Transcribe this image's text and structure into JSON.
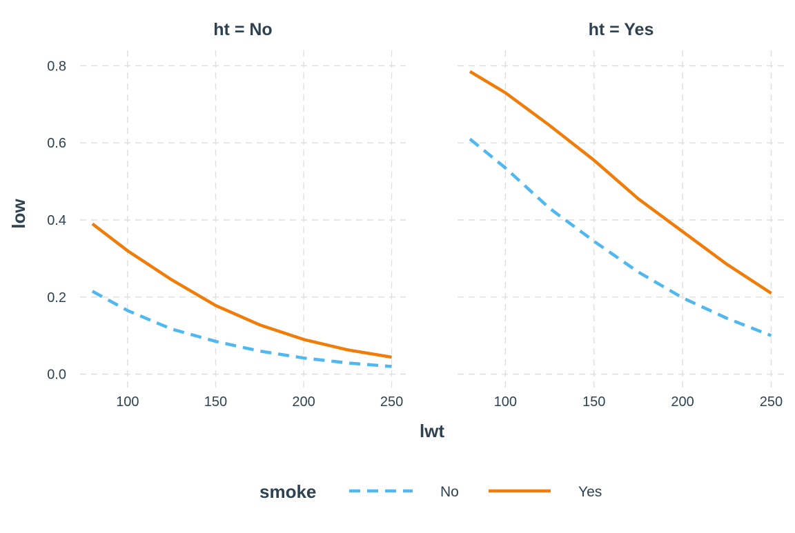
{
  "chart_data": {
    "type": "line",
    "xlabel": "lwt",
    "ylabel": "low",
    "xlim": [
      73,
      258
    ],
    "ylim": [
      -0.04,
      0.84
    ],
    "x_ticks": [
      100,
      150,
      200,
      250
    ],
    "y_ticks": [
      0.0,
      0.2,
      0.4,
      0.6,
      0.8
    ],
    "x_tick_labels": [
      "100",
      "150",
      "200",
      "250"
    ],
    "y_tick_labels": [
      "0.0",
      "0.2",
      "0.4",
      "0.6",
      "0.8"
    ],
    "grid": true,
    "legend": {
      "title": "smoke",
      "position": "bottom",
      "entries": [
        {
          "label": "No",
          "color": "#4FB8F0",
          "dash": "dashed"
        },
        {
          "label": "Yes",
          "color": "#F07C0A",
          "dash": "solid"
        }
      ]
    },
    "panels": [
      {
        "title": "ht = No",
        "x": [
          80,
          100,
          125,
          150,
          175,
          200,
          225,
          250
        ],
        "series": [
          {
            "name": "No",
            "values": [
              0.215,
              0.165,
              0.117,
              0.085,
              0.06,
              0.042,
              0.029,
              0.02
            ]
          },
          {
            "name": "Yes",
            "values": [
              0.39,
              0.32,
              0.245,
              0.178,
              0.128,
              0.09,
              0.063,
              0.044
            ]
          }
        ]
      },
      {
        "title": "ht = Yes",
        "x": [
          80,
          100,
          125,
          150,
          175,
          200,
          225,
          250
        ],
        "series": [
          {
            "name": "No",
            "values": [
              0.61,
              0.535,
              0.43,
              0.345,
              0.265,
              0.198,
              0.145,
              0.1
            ]
          },
          {
            "name": "Yes",
            "values": [
              0.785,
              0.73,
              0.645,
              0.555,
              0.455,
              0.37,
              0.285,
              0.21
            ]
          }
        ]
      }
    ]
  },
  "colors": {
    "text": "#2E4250",
    "grid": "#DEDEDE",
    "no": "#4FB8F0",
    "yes": "#F07C0A"
  }
}
